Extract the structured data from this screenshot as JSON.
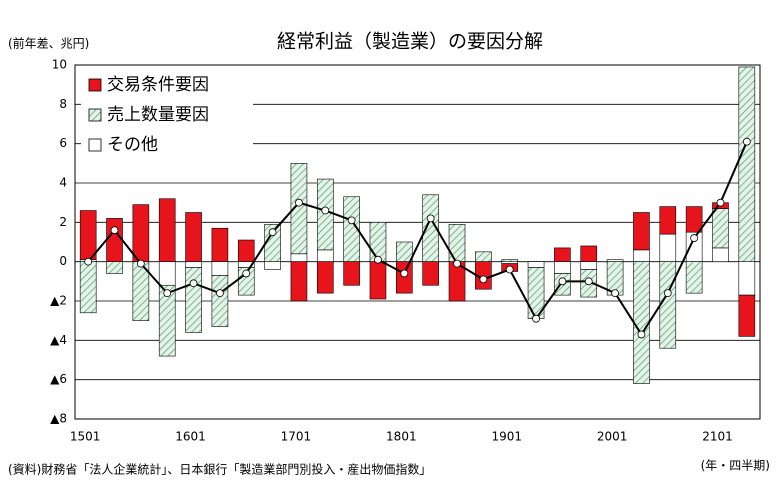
{
  "chart_data": {
    "type": "bar",
    "stacked": true,
    "title": "経常利益（製造業）の要因分解",
    "y_axis_label": "(前年差、兆円)",
    "x_axis_label": "(年・四半期)",
    "source": "(資料)財務省「法人企業統計」、日本銀行「製造業部門別投入・産出物価指数」",
    "categories": [
      "1501",
      null,
      null,
      null,
      "1601",
      null,
      null,
      null,
      "1701",
      null,
      null,
      null,
      "1801",
      null,
      null,
      null,
      "1901",
      null,
      null,
      null,
      "2001",
      null,
      null,
      null,
      "2101",
      null
    ],
    "series": [
      {
        "name": "交易条件要因",
        "color": "#e8141c",
        "pattern": "solid",
        "values": [
          2.5,
          2.2,
          2.9,
          3.2,
          2.5,
          1.7,
          1.1,
          0,
          -2.0,
          -1.6,
          -1.2,
          -1.9,
          -1.6,
          -1.2,
          -2.0,
          -1.4,
          -0.4,
          0,
          0.7,
          0.8,
          0,
          1.9,
          1.4,
          1.3,
          0.3,
          -2.1
        ]
      },
      {
        "name": "売上数量要因",
        "color": "#5aa87a",
        "pattern": "hatch",
        "values": [
          -2.6,
          -0.6,
          -3.0,
          -3.6,
          -3.3,
          -2.6,
          -1.4,
          1.9,
          4.6,
          3.6,
          3.3,
          2.0,
          1.0,
          3.4,
          1.9,
          0.5,
          0.1,
          -2.6,
          -1.1,
          -1.4,
          -1.7,
          -6.2,
          -4.4,
          -1.6,
          2.0,
          9.9
        ]
      },
      {
        "name": "その他",
        "color": "#ffffff",
        "pattern": "solid",
        "values": [
          0.1,
          0,
          0,
          -1.2,
          -0.3,
          -0.7,
          -0.3,
          -0.4,
          0.4,
          0.6,
          0,
          0,
          0,
          0,
          0,
          0,
          -0.1,
          -0.3,
          -0.6,
          -0.4,
          0.1,
          0.6,
          1.4,
          1.5,
          0.7,
          -1.7
        ]
      },
      {
        "type": "line",
        "color": "#000000",
        "values": [
          0,
          1.6,
          -0.1,
          -1.6,
          -1.1,
          -1.6,
          -0.6,
          1.5,
          3.0,
          2.6,
          2.1,
          0.1,
          -0.6,
          2.2,
          -0.1,
          -0.9,
          -0.4,
          -2.9,
          -1.0,
          -1.0,
          -1.6,
          -3.7,
          -1.6,
          1.2,
          3.0,
          6.1
        ]
      }
    ],
    "stack_order": [
      2,
      1,
      0
    ],
    "ylim": [
      -8,
      10
    ],
    "yticks": [
      10,
      8,
      6,
      4,
      2,
      0,
      {
        "value": -2,
        "label": "▲2"
      },
      {
        "value": -4,
        "label": "▲4"
      },
      {
        "value": -6,
        "label": "▲6"
      },
      {
        "value": -8,
        "label": "▲8"
      }
    ],
    "grid": true,
    "legend": "top-left"
  }
}
